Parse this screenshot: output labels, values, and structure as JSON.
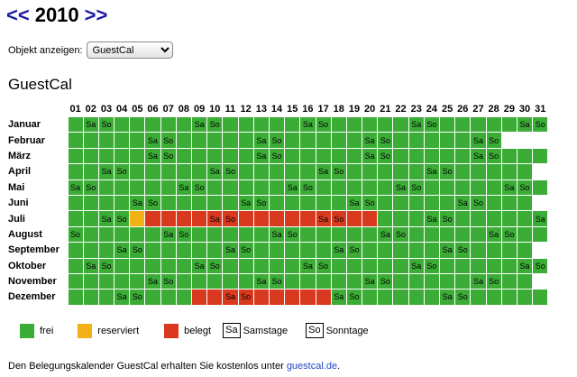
{
  "nav": {
    "prev": "<<",
    "year": "2010",
    "next": ">>"
  },
  "object_selector": {
    "label": "Objekt anzeigen:",
    "value": "GuestCal"
  },
  "calendar_title": "GuestCal",
  "days": [
    "01",
    "02",
    "03",
    "04",
    "05",
    "06",
    "07",
    "08",
    "09",
    "10",
    "11",
    "12",
    "13",
    "14",
    "15",
    "16",
    "17",
    "18",
    "19",
    "20",
    "21",
    "22",
    "23",
    "24",
    "25",
    "26",
    "27",
    "28",
    "29",
    "30",
    "31"
  ],
  "months": [
    {
      "name": "Januar",
      "days": 31,
      "first": 5,
      "rsv": [],
      "bkd": []
    },
    {
      "name": "Februar",
      "days": 28,
      "first": 1,
      "rsv": [],
      "bkd": []
    },
    {
      "name": "März",
      "days": 31,
      "first": 1,
      "rsv": [],
      "bkd": []
    },
    {
      "name": "April",
      "days": 30,
      "first": 4,
      "rsv": [],
      "bkd": []
    },
    {
      "name": "Mai",
      "days": 31,
      "first": 6,
      "rsv": [],
      "bkd": []
    },
    {
      "name": "Juni",
      "days": 30,
      "first": 2,
      "rsv": [],
      "bkd": []
    },
    {
      "name": "Juli",
      "days": 31,
      "first": 4,
      "rsv": [
        5
      ],
      "bkd": [
        6,
        7,
        8,
        9,
        10,
        11,
        12,
        13,
        14,
        15,
        16,
        17,
        18,
        19,
        20
      ]
    },
    {
      "name": "August",
      "days": 31,
      "first": 0,
      "rsv": [],
      "bkd": []
    },
    {
      "name": "September",
      "days": 30,
      "first": 3,
      "rsv": [],
      "bkd": []
    },
    {
      "name": "Oktober",
      "days": 31,
      "first": 5,
      "rsv": [],
      "bkd": []
    },
    {
      "name": "November",
      "days": 30,
      "first": 1,
      "rsv": [],
      "bkd": []
    },
    {
      "name": "Dezember",
      "days": 31,
      "first": 3,
      "rsv": [],
      "bkd": [
        9,
        10,
        11,
        12,
        13,
        14,
        15,
        16,
        17
      ]
    }
  ],
  "weekend_labels": {
    "sat": "Sa",
    "sun": "So"
  },
  "legend": {
    "free": "frei",
    "reserved": "reserviert",
    "booked": "belegt",
    "sat_box": "Sa",
    "sat_label": "Samstage",
    "sun_box": "So",
    "sun_label": "Sonntage"
  },
  "colors": {
    "free": "#3bad36",
    "reserved": "#f3b119",
    "booked": "#d93a1f",
    "link": "#2447c8"
  },
  "footer": {
    "text": "Den Belegungskalender GuestCal erhalten Sie kostenlos unter",
    "link": "guestcal.de",
    "suffix": "."
  }
}
